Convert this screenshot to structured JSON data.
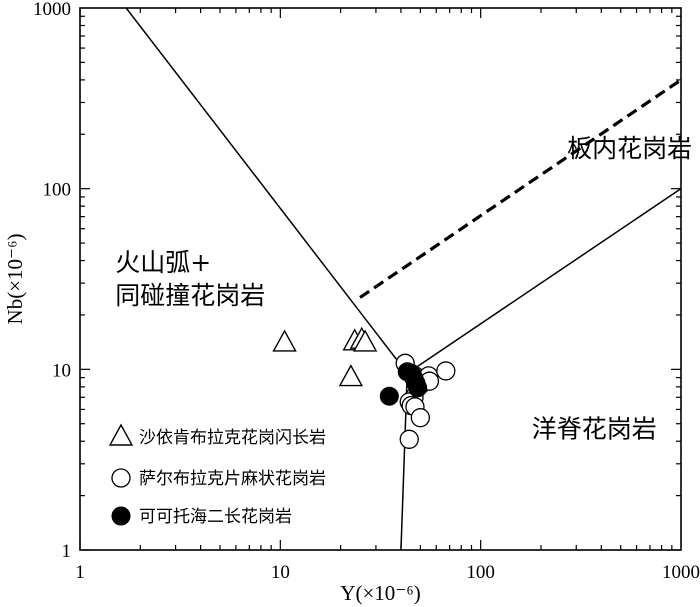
{
  "chart_data": {
    "type": "scatter",
    "x_scale": "log",
    "y_scale": "log",
    "xlim": [
      1,
      1000
    ],
    "ylim": [
      1,
      1000
    ],
    "xlabel": "Y(×10⁻⁶)",
    "ylabel": "Nb(×10⁻⁶)",
    "x_ticks": [
      {
        "value": 1,
        "label": "1"
      },
      {
        "value": 10,
        "label": "10"
      },
      {
        "value": 100,
        "label": "100"
      },
      {
        "value": 1000,
        "label": "1000"
      }
    ],
    "y_ticks": [
      {
        "value": 1,
        "label": "1"
      },
      {
        "value": 10,
        "label": "10"
      },
      {
        "value": 100,
        "label": "100"
      },
      {
        "value": 1000,
        "label": "1000"
      }
    ],
    "grid": false,
    "legend_position": "bottom-left",
    "region_labels": [
      {
        "lines": [
          "板内花岗岩"
        ],
        "x": 270,
        "y": 150
      },
      {
        "lines": [
          "火山弧+",
          "同碰撞花岗岩"
        ],
        "x": 1.5,
        "y": 35
      },
      {
        "lines": [
          "洋脊花岗岩"
        ],
        "x": 180,
        "y": 4.2
      }
    ],
    "boundaries": [
      {
        "style": "solid",
        "points": [
          [
            1.7,
            1000
          ],
          [
            43,
            9.5
          ]
        ]
      },
      {
        "style": "solid",
        "points": [
          [
            43,
            9.5
          ],
          [
            40,
            1
          ]
        ]
      },
      {
        "style": "solid",
        "points": [
          [
            43,
            9.5
          ],
          [
            1000,
            100
          ]
        ]
      },
      {
        "style": "dashed",
        "points": [
          [
            25,
            25
          ],
          [
            1000,
            400
          ]
        ]
      }
    ],
    "series": [
      {
        "name": "沙依肯布拉克花岗闪长岩",
        "marker": "triangle-open",
        "points": [
          [
            10.5,
            14
          ],
          [
            23.5,
            14.2
          ],
          [
            25.5,
            14.5
          ],
          [
            26.5,
            14
          ],
          [
            22.5,
            9
          ]
        ]
      },
      {
        "name": "萨尔布拉克片麻状花岗岩",
        "marker": "circle-open",
        "points": [
          [
            42,
            10.8
          ],
          [
            45,
            9.5
          ],
          [
            47,
            9.2
          ],
          [
            48.5,
            8.4
          ],
          [
            50,
            8.2
          ],
          [
            52,
            8.8
          ],
          [
            55,
            9.2
          ],
          [
            55.5,
            8.6
          ],
          [
            67,
            9.8
          ],
          [
            46.5,
            7
          ],
          [
            44,
            6.6
          ],
          [
            45,
            6.3
          ],
          [
            47,
            6.2
          ],
          [
            50,
            5.4
          ],
          [
            44,
            4.1
          ]
        ]
      },
      {
        "name": "可可托海二长花岗岩",
        "marker": "circle-filled",
        "points": [
          [
            43,
            9.7
          ],
          [
            45.5,
            9.3
          ],
          [
            47.5,
            8.4
          ],
          [
            46.5,
            8.9
          ],
          [
            48.5,
            7.9
          ],
          [
            35,
            7.1
          ]
        ]
      }
    ]
  }
}
